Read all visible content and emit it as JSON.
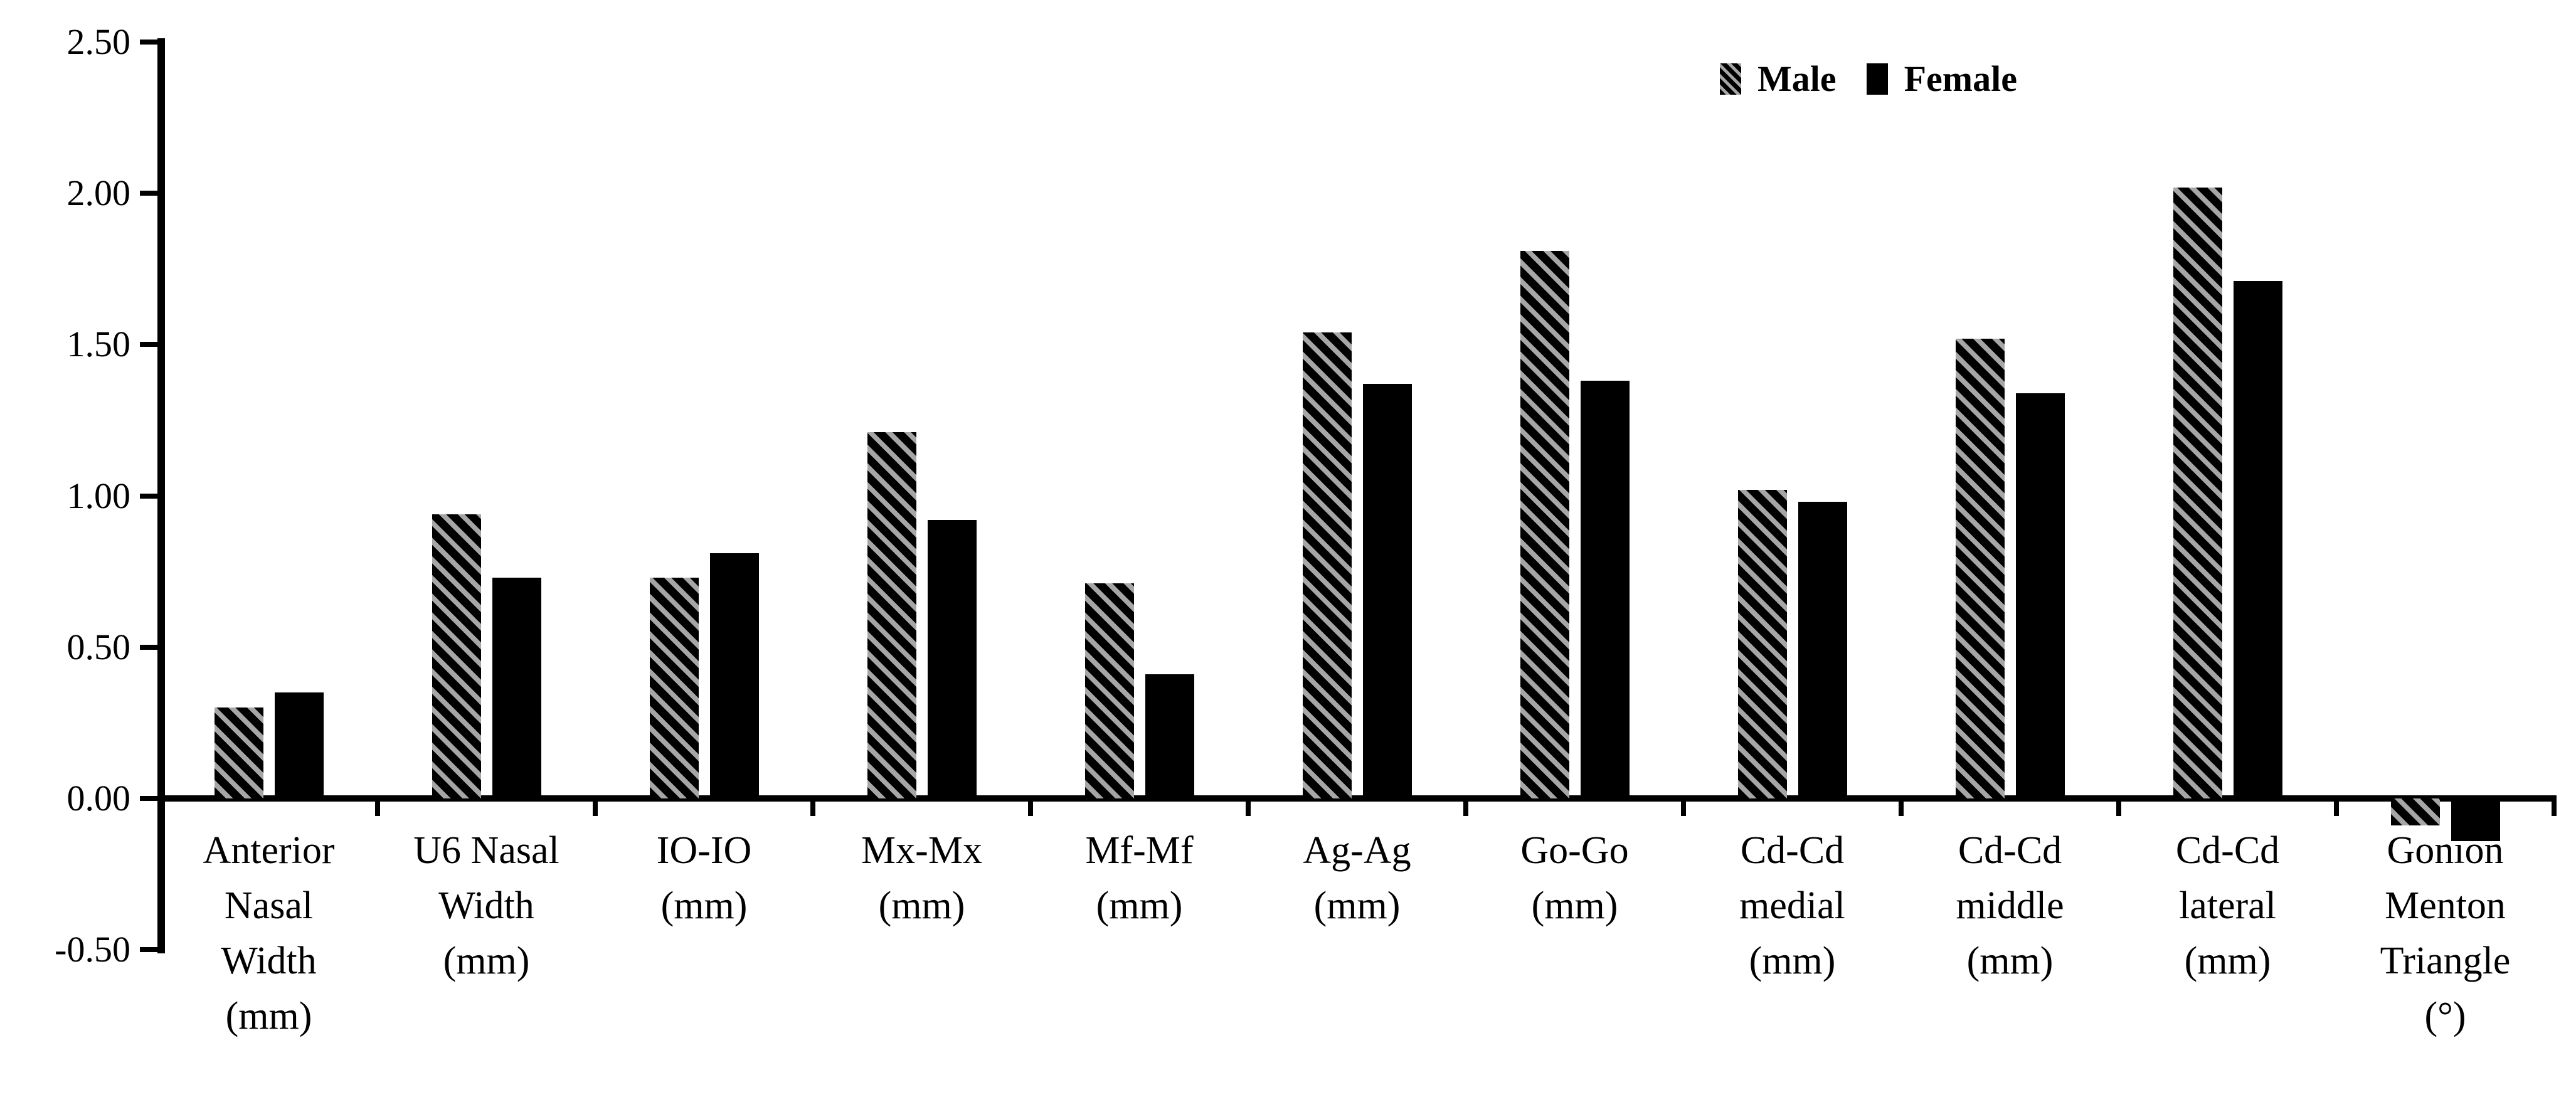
{
  "figure": {
    "background": "#ffffff",
    "legend": {
      "position": "top-right",
      "items": [
        {
          "label": "Male",
          "swatch": "hatched-diagonal"
        },
        {
          "label": "Female",
          "swatch": "solid-black"
        }
      ]
    }
  },
  "chart_data": {
    "type": "bar",
    "title": "",
    "xlabel": "",
    "ylabel": "",
    "grid": false,
    "ylim": [
      -0.5,
      2.5
    ],
    "ytick_step": 0.5,
    "ytick_values": [
      2.5,
      2.0,
      1.5,
      1.0,
      0.5,
      0.0,
      -0.5
    ],
    "ytick_labels": [
      "2.50",
      "2.00",
      "1.50",
      "1.00",
      "0.50",
      "0.00",
      "-0.50"
    ],
    "categories": [
      "Anterior Nasal Width (mm)",
      "U6 Nasal Width (mm)",
      "IO-IO (mm)",
      "Mx-Mx (mm)",
      "Mf-Mf (mm)",
      "Ag-Ag (mm)",
      "Go-Go (mm)",
      "Cd-Cd medial (mm)",
      "Cd-Cd middle (mm)",
      "Cd-Cd lateral (mm)",
      "Gonion Menton Triangle (°)"
    ],
    "category_label_lines": [
      [
        "Anterior",
        "Nasal",
        "Width",
        "(mm)"
      ],
      [
        "U6 Nasal",
        "Width",
        "(mm)"
      ],
      [
        "IO-IO",
        "(mm)"
      ],
      [
        "Mx-Mx",
        "(mm)"
      ],
      [
        "Mf-Mf",
        "(mm)"
      ],
      [
        "Ag-Ag",
        "(mm)"
      ],
      [
        "Go-Go",
        "(mm)"
      ],
      [
        "Cd-Cd",
        "medial",
        "(mm)"
      ],
      [
        "Cd-Cd",
        "middle",
        "(mm)"
      ],
      [
        "Cd-Cd",
        "lateral",
        "(mm)"
      ],
      [
        "Gonion",
        "Menton",
        "Triangle",
        "(°)"
      ]
    ],
    "series": [
      {
        "name": "Male",
        "values": [
          0.3,
          0.94,
          0.73,
          1.21,
          0.71,
          1.54,
          1.81,
          1.02,
          1.52,
          2.02,
          -0.09
        ]
      },
      {
        "name": "Female",
        "values": [
          0.35,
          0.73,
          0.81,
          0.92,
          0.41,
          1.37,
          1.38,
          0.98,
          1.34,
          1.71,
          -0.14
        ]
      }
    ],
    "legend_position": "top-right",
    "colors": {
      "bar_fill": "#000000",
      "hatch_stripe": "#a6a6a6",
      "axis": "#000000",
      "background": "#ffffff"
    }
  }
}
